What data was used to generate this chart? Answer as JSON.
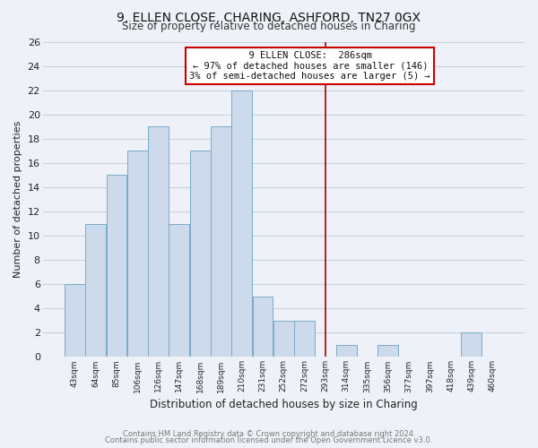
{
  "title": "9, ELLEN CLOSE, CHARING, ASHFORD, TN27 0GX",
  "subtitle": "Size of property relative to detached houses in Charing",
  "xlabel": "Distribution of detached houses by size in Charing",
  "ylabel": "Number of detached properties",
  "bar_labels": [
    "43sqm",
    "64sqm",
    "85sqm",
    "106sqm",
    "126sqm",
    "147sqm",
    "168sqm",
    "189sqm",
    "210sqm",
    "231sqm",
    "252sqm",
    "272sqm",
    "293sqm",
    "314sqm",
    "335sqm",
    "356sqm",
    "377sqm",
    "397sqm",
    "418sqm",
    "439sqm",
    "460sqm"
  ],
  "bar_values": [
    6,
    11,
    15,
    17,
    19,
    11,
    17,
    19,
    22,
    5,
    3,
    3,
    0,
    1,
    0,
    1,
    0,
    0,
    0,
    2,
    0
  ],
  "bar_color": "#ccdaeb",
  "bar_edge_color": "#7aaac8",
  "vline_x": 12,
  "vline_color": "#aa0000",
  "annotation_title": "9 ELLEN CLOSE:  286sqm",
  "annotation_line1": "← 97% of detached houses are smaller (146)",
  "annotation_line2": "3% of semi-detached houses are larger (5) →",
  "ylim": [
    0,
    26
  ],
  "yticks": [
    0,
    2,
    4,
    6,
    8,
    10,
    12,
    14,
    16,
    18,
    20,
    22,
    24,
    26
  ],
  "footer1": "Contains HM Land Registry data © Crown copyright and database right 2024.",
  "footer2": "Contains public sector information licensed under the Open Government Licence v3.0.",
  "bg_color": "#eef2f8",
  "grid_color": "#c8d0dc",
  "title_fontsize": 10,
  "subtitle_fontsize": 8.5,
  "ylabel_fontsize": 8,
  "xlabel_fontsize": 8.5
}
